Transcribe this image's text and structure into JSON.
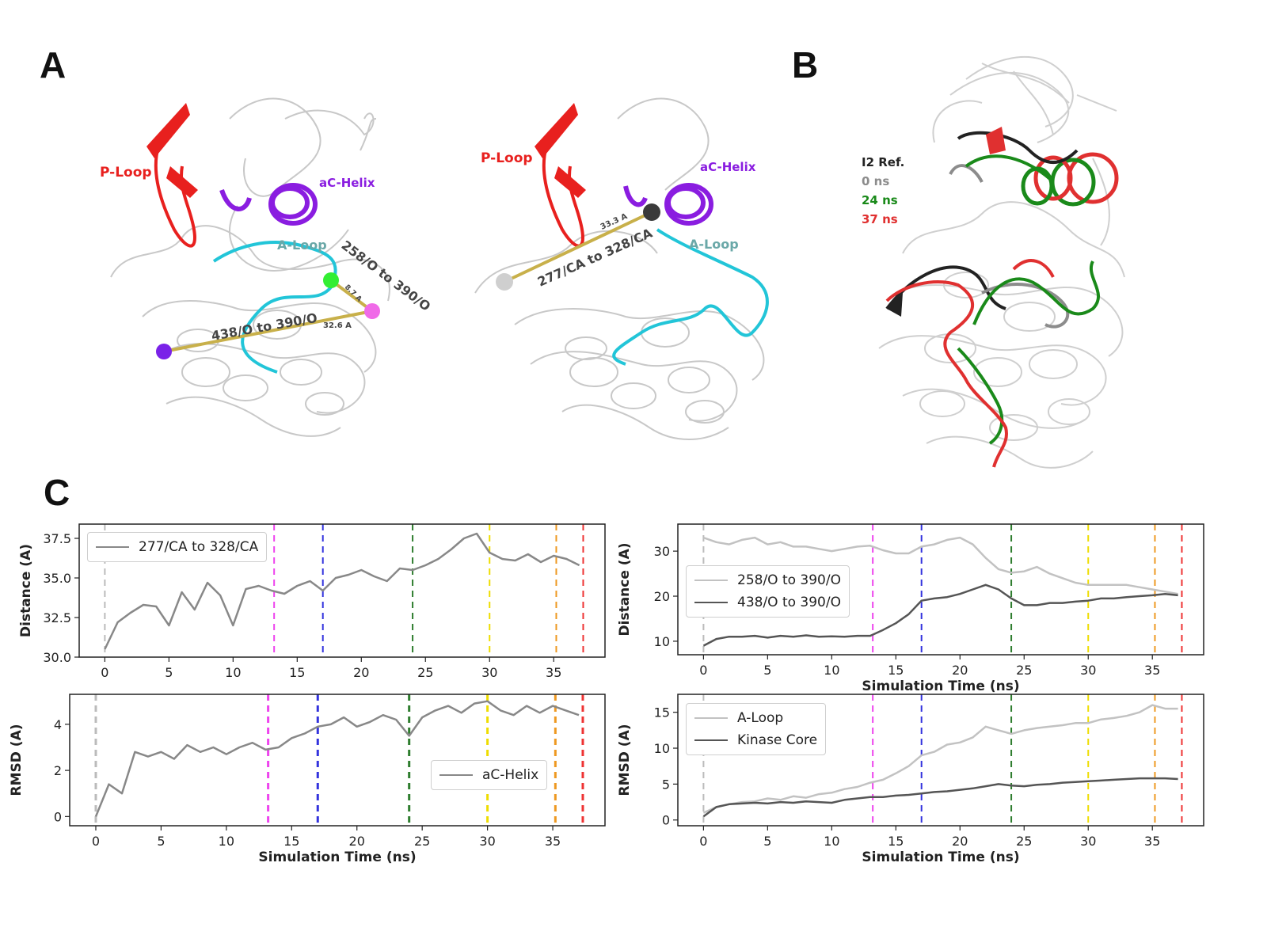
{
  "panels": {
    "a": {
      "letter": "A"
    },
    "b": {
      "letter": "B"
    },
    "c": {
      "letter": "C"
    }
  },
  "structure_left": {
    "p_loop": "P-Loop",
    "ac_helix": "aC-Helix",
    "a_loop": "A-Loop",
    "dist_258": "258/O to 390/O",
    "dist_438": "438/O to 390/O",
    "val_87": "8.7 A",
    "val_326": "32.6 A",
    "colors": {
      "p_loop": "#e8201e",
      "ac_helix": "#8a1de0",
      "a_loop": "#22c5d8",
      "a_loop_label": "#6aa8a8"
    }
  },
  "structure_mid": {
    "p_loop": "P-Loop",
    "ac_helix": "aC-Helix",
    "a_loop": "A-Loop",
    "dist_277": "277/CA to 328/CA",
    "val_333": "33.3 A"
  },
  "structure_b": {
    "legend": [
      {
        "label": "I2 Ref.",
        "color": "#222222"
      },
      {
        "label": "0 ns",
        "color": "#8c8c8c"
      },
      {
        "label": "24 ns",
        "color": "#1a8a1a"
      },
      {
        "label": "37 ns",
        "color": "#e03030"
      }
    ]
  },
  "chart_data": [
    {
      "id": "c1",
      "type": "line",
      "ylabel": "Distance (A)",
      "xlabel": "",
      "xlim": [
        -2,
        39
      ],
      "ylim": [
        30,
        38.4
      ],
      "xticks": [
        0,
        5,
        10,
        15,
        20,
        25,
        30,
        35
      ],
      "yticks": [
        30.0,
        32.5,
        35.0,
        37.5
      ],
      "ytick_labels": [
        "30.0",
        "32.5",
        "35.0",
        "37.5"
      ],
      "legend_position": "top-left",
      "series": [
        {
          "name": "277/CA to 328/CA",
          "color": "#888888",
          "x": [
            0,
            1,
            2,
            3,
            4,
            5,
            6,
            7,
            8,
            9,
            10,
            11,
            12,
            13,
            14,
            15,
            16,
            17,
            18,
            19,
            20,
            21,
            22,
            23,
            24,
            25,
            26,
            27,
            28,
            29,
            30,
            31,
            32,
            33,
            34,
            35,
            36,
            37
          ],
          "y": [
            30.5,
            32.2,
            32.8,
            33.3,
            33.2,
            32.0,
            34.1,
            33.0,
            34.7,
            33.9,
            32.0,
            34.3,
            34.5,
            34.2,
            34.0,
            34.5,
            34.8,
            34.2,
            35.0,
            35.2,
            35.5,
            35.1,
            34.8,
            35.6,
            35.5,
            35.8,
            36.2,
            36.8,
            37.5,
            37.8,
            36.6,
            36.2,
            36.1,
            36.5,
            36.0,
            36.4,
            36.2,
            35.8
          ]
        }
      ]
    },
    {
      "id": "c2",
      "type": "line",
      "ylabel": "Distance (A)",
      "xlabel": "Simulation Time (ns)",
      "xlim": [
        -2,
        39
      ],
      "ylim": [
        7,
        36
      ],
      "xticks": [
        0,
        5,
        10,
        15,
        20,
        25,
        30,
        35
      ],
      "yticks": [
        10,
        20,
        30
      ],
      "ytick_labels": [
        "10",
        "20",
        "30"
      ],
      "legend_position": "center-left",
      "series": [
        {
          "name": "258/O to 390/O",
          "color": "#c2c2c2",
          "x": [
            0,
            1,
            2,
            3,
            4,
            5,
            6,
            7,
            8,
            9,
            10,
            11,
            12,
            13,
            14,
            15,
            16,
            17,
            18,
            19,
            20,
            21,
            22,
            23,
            24,
            25,
            26,
            27,
            28,
            29,
            30,
            31,
            32,
            33,
            34,
            35,
            36,
            37
          ],
          "y": [
            33,
            32,
            31.5,
            32.5,
            33,
            31.5,
            32,
            31,
            31,
            30.5,
            30,
            30.5,
            31,
            31.2,
            30.2,
            29.5,
            29.5,
            31,
            31.5,
            32.5,
            33,
            31.5,
            28.5,
            26,
            25.2,
            25.5,
            26.5,
            25,
            24,
            23,
            22.5,
            22.5,
            22.5,
            22.5,
            22,
            21.5,
            21,
            20.5
          ]
        },
        {
          "name": "438/O to 390/O",
          "color": "#555555",
          "x": [
            0,
            1,
            2,
            3,
            4,
            5,
            6,
            7,
            8,
            9,
            10,
            11,
            12,
            13,
            14,
            15,
            16,
            17,
            18,
            19,
            20,
            21,
            22,
            23,
            24,
            25,
            26,
            27,
            28,
            29,
            30,
            31,
            32,
            33,
            34,
            35,
            36,
            37
          ],
          "y": [
            9,
            10.5,
            11,
            11,
            11.2,
            10.8,
            11.2,
            11,
            11.3,
            11,
            11.1,
            11,
            11.2,
            11.2,
            12.5,
            14,
            16,
            19,
            19.5,
            19.8,
            20.5,
            21.5,
            22.5,
            21.5,
            19.5,
            18,
            18,
            18.5,
            18.5,
            18.8,
            19,
            19.5,
            19.5,
            19.8,
            20,
            20.2,
            20.5,
            20.2
          ]
        }
      ]
    },
    {
      "id": "c3",
      "type": "line",
      "ylabel": "RMSD (A)",
      "xlabel": "Simulation Time (ns)",
      "xlim": [
        -2,
        39
      ],
      "ylim": [
        -0.4,
        5.3
      ],
      "xticks": [
        0,
        5,
        10,
        15,
        20,
        25,
        30,
        35
      ],
      "yticks": [
        0,
        2,
        4
      ],
      "ytick_labels": [
        "0",
        "2",
        "4"
      ],
      "legend_position": "center-right",
      "series": [
        {
          "name": "aC-Helix",
          "color": "#888888",
          "x": [
            0,
            1,
            2,
            3,
            4,
            5,
            6,
            7,
            8,
            9,
            10,
            11,
            12,
            13,
            14,
            15,
            16,
            17,
            18,
            19,
            20,
            21,
            22,
            23,
            24,
            25,
            26,
            27,
            28,
            29,
            30,
            31,
            32,
            33,
            34,
            35,
            36,
            37
          ],
          "y": [
            0.0,
            1.4,
            1.0,
            2.8,
            2.6,
            2.8,
            2.5,
            3.1,
            2.8,
            3.0,
            2.7,
            3.0,
            3.2,
            2.9,
            3.0,
            3.4,
            3.6,
            3.9,
            4.0,
            4.3,
            3.9,
            4.1,
            4.4,
            4.2,
            3.5,
            4.3,
            4.6,
            4.8,
            4.5,
            4.9,
            5.0,
            4.6,
            4.4,
            4.8,
            4.5,
            4.8,
            4.6,
            4.4
          ]
        }
      ]
    },
    {
      "id": "c4",
      "type": "line",
      "ylabel": "RMSD (A)",
      "xlabel": "Simulation Time (ns)",
      "xlim": [
        -2,
        39
      ],
      "ylim": [
        -0.8,
        17.5
      ],
      "xticks": [
        0,
        5,
        10,
        15,
        20,
        25,
        30,
        35
      ],
      "yticks": [
        0,
        5,
        10,
        15
      ],
      "ytick_labels": [
        "0",
        "5",
        "10",
        "15"
      ],
      "legend_position": "top-left",
      "series": [
        {
          "name": "A-Loop",
          "color": "#c2c2c2",
          "x": [
            0,
            1,
            2,
            3,
            4,
            5,
            6,
            7,
            8,
            9,
            10,
            11,
            12,
            13,
            14,
            15,
            16,
            17,
            18,
            19,
            20,
            21,
            22,
            23,
            24,
            25,
            26,
            27,
            28,
            29,
            30,
            31,
            32,
            33,
            34,
            35,
            36,
            37
          ],
          "y": [
            1.0,
            1.8,
            2.2,
            2.5,
            2.6,
            3.0,
            2.8,
            3.3,
            3.1,
            3.6,
            3.8,
            4.3,
            4.6,
            5.2,
            5.6,
            6.5,
            7.5,
            9.0,
            9.5,
            10.5,
            10.8,
            11.5,
            13.0,
            12.5,
            12.0,
            12.5,
            12.8,
            13.0,
            13.2,
            13.5,
            13.5,
            14.0,
            14.2,
            14.5,
            15.0,
            16.0,
            15.5,
            15.5
          ]
        },
        {
          "name": "Kinase Core",
          "color": "#555555",
          "x": [
            0,
            1,
            2,
            3,
            4,
            5,
            6,
            7,
            8,
            9,
            10,
            11,
            12,
            13,
            14,
            15,
            16,
            17,
            18,
            19,
            20,
            21,
            22,
            23,
            24,
            25,
            26,
            27,
            28,
            29,
            30,
            31,
            32,
            33,
            34,
            35,
            36,
            37
          ],
          "y": [
            0.5,
            1.8,
            2.2,
            2.3,
            2.4,
            2.3,
            2.5,
            2.4,
            2.6,
            2.5,
            2.4,
            2.8,
            3.0,
            3.2,
            3.2,
            3.4,
            3.5,
            3.7,
            3.9,
            4.0,
            4.2,
            4.4,
            4.7,
            5.0,
            4.8,
            4.7,
            4.9,
            5.0,
            5.2,
            5.3,
            5.4,
            5.5,
            5.6,
            5.7,
            5.8,
            5.8,
            5.8,
            5.7
          ]
        }
      ]
    }
  ],
  "time_markers": [
    {
      "t": 0,
      "color": "#bbbbbb"
    },
    {
      "t": 13.2,
      "color": "#ee44ee"
    },
    {
      "t": 17,
      "color": "#3333dd"
    },
    {
      "t": 24,
      "color": "#2e7d2e"
    },
    {
      "t": 30,
      "color": "#eedd00"
    },
    {
      "t": 35.2,
      "color": "#ee9922"
    },
    {
      "t": 37.3,
      "color": "#ee3333"
    }
  ]
}
